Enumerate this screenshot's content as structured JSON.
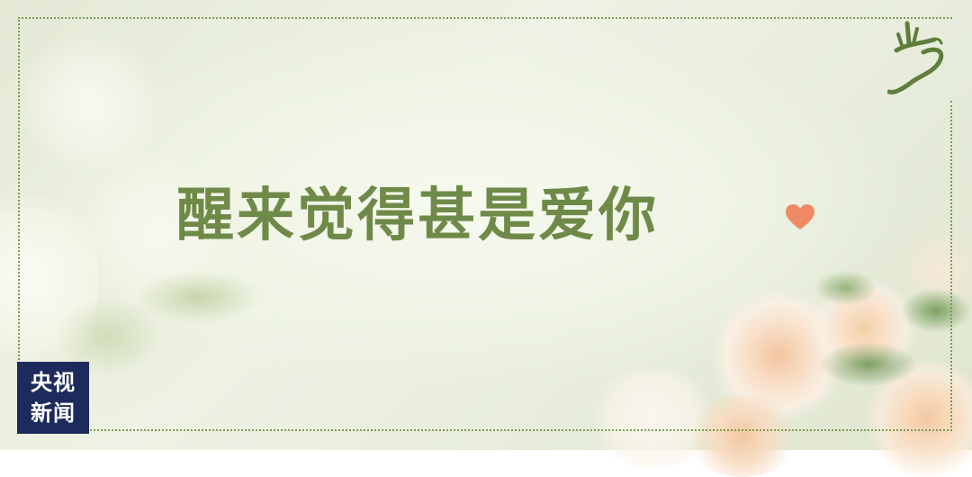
{
  "headline": "醒来觉得甚是爱你",
  "logo": {
    "line1": "央视",
    "line2": "新闻"
  },
  "icons": {
    "heart": "heart-icon",
    "seal": "calligraphy-seal-icon"
  },
  "colors": {
    "headline": "#6f8a48",
    "frame": "#7b9a55",
    "heart": "#f08a64",
    "logo_bg": "#1d2a5c",
    "seal": "#5f7e3b"
  }
}
